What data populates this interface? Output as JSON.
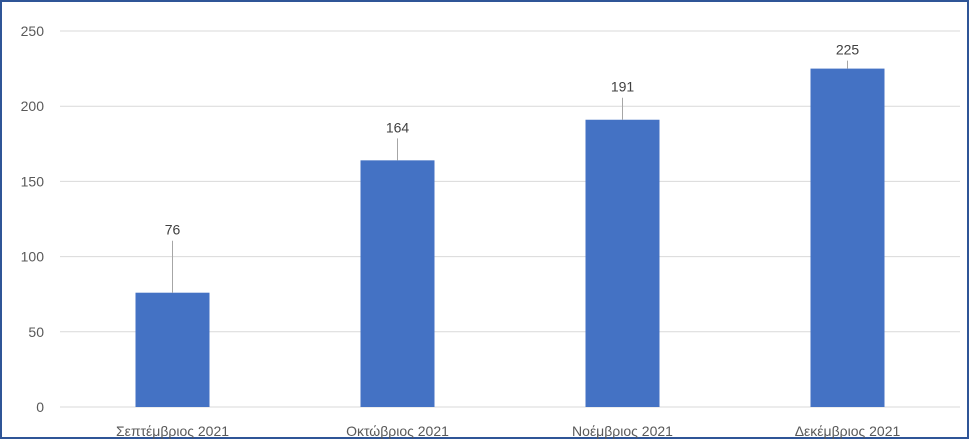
{
  "chart_data": {
    "type": "bar",
    "title": "",
    "xlabel": "",
    "ylabel": "",
    "categories": [
      "Σεπτέμβριος 2021",
      "Οκτώβριος 2021",
      "Νοέμβριος 2021",
      "Δεκέμβριος 2021"
    ],
    "values": [
      76,
      164,
      191,
      225
    ],
    "ylim": [
      0,
      250
    ],
    "yticks": [
      0,
      50,
      100,
      150,
      200,
      250
    ],
    "grid": true,
    "legend": "none",
    "bar_color": "#4472c4",
    "grid_color": "#d9d9d9",
    "frame_color": "#2f5597"
  }
}
